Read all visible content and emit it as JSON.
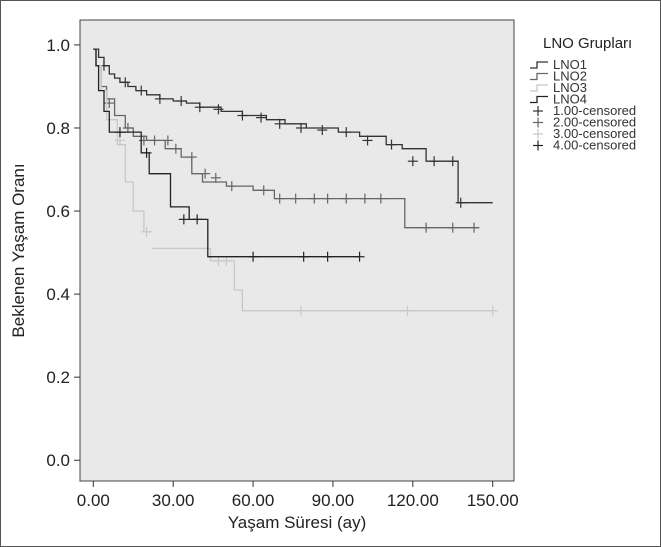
{
  "chart_data": {
    "type": "line",
    "title": "",
    "xlabel": "Yaşam Süresi (ay)",
    "ylabel": "Beklenen Yaşam Oranı",
    "xlim": [
      -5,
      158
    ],
    "ylim": [
      -0.05,
      1.06
    ],
    "x_ticks": [
      0,
      30,
      60,
      90,
      120,
      150
    ],
    "x_tick_labels": [
      "0.00",
      "30.00",
      "60.00",
      "90.00",
      "120.00",
      "150.00"
    ],
    "y_ticks": [
      0,
      0.2,
      0.4,
      0.6,
      0.8,
      1.0
    ],
    "y_tick_labels": [
      "0.0",
      "0.2",
      "0.4",
      "0.6",
      "0.8",
      "1.0"
    ],
    "grid": false,
    "legend": {
      "title": "LNO Grupları",
      "position": "right"
    },
    "series": [
      {
        "name": "LNO1",
        "color": "#333333",
        "x": [
          0,
          2,
          4,
          6,
          8,
          10,
          13,
          16,
          20,
          25,
          30,
          35,
          40,
          48,
          56,
          65,
          72,
          80,
          92,
          100,
          110,
          116,
          125,
          137,
          150
        ],
        "y": [
          0.99,
          0.97,
          0.95,
          0.93,
          0.92,
          0.91,
          0.9,
          0.89,
          0.88,
          0.87,
          0.865,
          0.86,
          0.85,
          0.84,
          0.83,
          0.82,
          0.81,
          0.8,
          0.79,
          0.78,
          0.76,
          0.75,
          0.72,
          0.62,
          0.62
        ],
        "censored_x": [
          4,
          12,
          18,
          25,
          33,
          40,
          47,
          56,
          63,
          70,
          78,
          86,
          95,
          103,
          112,
          120,
          128,
          135,
          138
        ],
        "censored_y": [
          0.95,
          0.91,
          0.89,
          0.87,
          0.865,
          0.85,
          0.845,
          0.83,
          0.825,
          0.81,
          0.8,
          0.795,
          0.79,
          0.77,
          0.76,
          0.72,
          0.72,
          0.72,
          0.62
        ]
      },
      {
        "name": "LNO2",
        "color": "#666666",
        "x": [
          0,
          1,
          3,
          5,
          8,
          12,
          15,
          20,
          27,
          33,
          37,
          41,
          50,
          60,
          68,
          80,
          100,
          113,
          117,
          140,
          145
        ],
        "y": [
          0.99,
          0.95,
          0.9,
          0.87,
          0.83,
          0.8,
          0.78,
          0.77,
          0.75,
          0.73,
          0.69,
          0.67,
          0.66,
          0.65,
          0.63,
          0.63,
          0.63,
          0.63,
          0.56,
          0.56,
          0.56
        ],
        "censored_x": [
          6,
          13,
          19,
          23,
          28,
          31,
          37,
          42,
          46,
          52,
          64,
          70,
          76,
          83,
          88,
          95,
          102,
          108,
          125,
          135,
          143
        ],
        "censored_y": [
          0.86,
          0.8,
          0.77,
          0.77,
          0.77,
          0.75,
          0.73,
          0.69,
          0.68,
          0.66,
          0.65,
          0.63,
          0.63,
          0.63,
          0.63,
          0.63,
          0.63,
          0.63,
          0.56,
          0.56,
          0.56
        ]
      },
      {
        "name": "LNO3",
        "color": "#c8c8c8",
        "x": [
          0,
          1,
          3,
          5,
          9,
          12,
          15,
          19,
          22,
          30,
          44,
          49,
          53,
          56,
          80,
          120,
          150
        ],
        "y": [
          0.99,
          0.95,
          0.89,
          0.82,
          0.76,
          0.67,
          0.6,
          0.55,
          0.51,
          0.51,
          0.48,
          0.48,
          0.41,
          0.36,
          0.36,
          0.36,
          0.36
        ],
        "censored_x": [
          10,
          20,
          47,
          50,
          78,
          118,
          150
        ],
        "censored_y": [
          0.77,
          0.55,
          0.48,
          0.48,
          0.36,
          0.36,
          0.36
        ],
        "segment_break": [
          8
        ]
      },
      {
        "name": "LNO4",
        "color": "#222222",
        "x": [
          0,
          1,
          2,
          4,
          6,
          12,
          18,
          21,
          26,
          29,
          36,
          40,
          43,
          55,
          70,
          85,
          100
        ],
        "y": [
          0.99,
          0.95,
          0.89,
          0.84,
          0.79,
          0.79,
          0.74,
          0.69,
          0.69,
          0.61,
          0.58,
          0.58,
          0.49,
          0.49,
          0.49,
          0.49,
          0.49
        ],
        "censored_x": [
          10,
          20,
          34,
          39,
          60,
          79,
          88,
          100
        ],
        "censored_y": [
          0.79,
          0.74,
          0.58,
          0.58,
          0.49,
          0.49,
          0.49,
          0.49
        ]
      }
    ],
    "censored_legend": [
      {
        "name": "1.00-censored",
        "color": "#333333"
      },
      {
        "name": "2.00-censored",
        "color": "#666666"
      },
      {
        "name": "3.00-censored",
        "color": "#c8c8c8"
      },
      {
        "name": "4.00-censored",
        "color": "#222222"
      }
    ],
    "background": "#e9e9e9"
  }
}
